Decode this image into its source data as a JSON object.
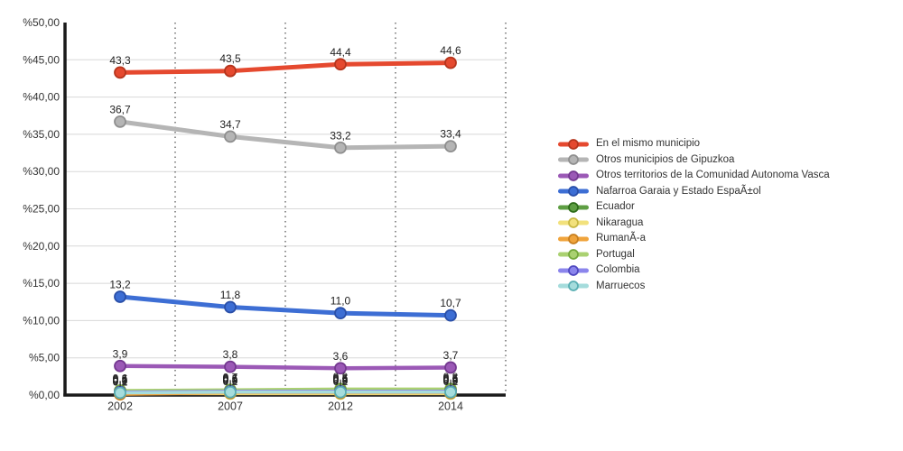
{
  "chart_data": {
    "type": "line",
    "title": "",
    "xlabel": "",
    "ylabel": "",
    "categories": [
      "2002",
      "2007",
      "2012",
      "2014"
    ],
    "y_ticklabels": [
      "%0,00",
      "%5,00",
      "%10,00",
      "%15,00",
      "%20,00",
      "%25,00",
      "%30,00",
      "%35,00",
      "%40,00",
      "%45,00",
      "%50,00"
    ],
    "ylim": [
      0,
      50
    ],
    "y_step": 5,
    "grid_horizontal": true,
    "grid_vertical_dotted": true,
    "legend_position": "right",
    "decimal_separator": ",",
    "series": [
      {
        "name": "En el mismo municipio",
        "color": "#e5492f",
        "marker_stroke": "#b5351d",
        "line_width": 5,
        "values": [
          43.3,
          43.5,
          44.4,
          44.6
        ],
        "show_labels": true
      },
      {
        "name": "Otros municipios de Gipuzkoa",
        "color": "#b5b5b5",
        "marker_stroke": "#8f8f8f",
        "line_width": 5,
        "values": [
          36.7,
          34.7,
          33.2,
          33.4
        ],
        "show_labels": true
      },
      {
        "name": "Otros territorios de la Comunidad Autonoma Vasca",
        "color": "#9b59b6",
        "marker_stroke": "#743990",
        "line_width": 4.5,
        "values": [
          3.9,
          3.8,
          3.6,
          3.7
        ],
        "show_labels": true
      },
      {
        "name": "Nafarroa Garaia y Estado EspaÃ±ol",
        "color": "#3d6ed4",
        "marker_stroke": "#2a4fa8",
        "line_width": 5,
        "values": [
          13.2,
          11.8,
          11.0,
          10.7
        ],
        "show_labels": true
      },
      {
        "name": "Ecuador",
        "color": "#5e9e43",
        "marker_stroke": "#2f6c1a",
        "line_width": 3.5,
        "values": [
          0.5,
          0.6,
          0.6,
          0.6
        ],
        "show_labels": true
      },
      {
        "name": "Nikaragua",
        "color": "#f2e17c",
        "marker_stroke": "#c9b944",
        "line_width": 3.5,
        "values": [
          0.2,
          0.2,
          0.2,
          0.2
        ],
        "show_labels": true
      },
      {
        "name": "RumanÃ-a",
        "color": "#f0a43c",
        "marker_stroke": "#c77f1f",
        "line_width": 3.5,
        "values": [
          0.1,
          0.3,
          0.3,
          0.3
        ],
        "show_labels": true
      },
      {
        "name": "Portugal",
        "color": "#aad171",
        "marker_stroke": "#74a83a",
        "line_width": 3.5,
        "values": [
          0.6,
          0.7,
          0.8,
          0.8
        ],
        "show_labels": true
      },
      {
        "name": "Colombia",
        "color": "#8b85ec",
        "marker_stroke": "#4f48c0",
        "line_width": 3.5,
        "values": [
          0.4,
          0.5,
          0.5,
          0.5
        ],
        "show_labels": true
      },
      {
        "name": "Marruecos",
        "color": "#a5dcdc",
        "marker_stroke": "#58aeb2",
        "line_width": 3.5,
        "values": [
          0.3,
          0.4,
          0.4,
          0.4
        ],
        "show_labels": true
      }
    ],
    "axis_color": "#1a1a1a",
    "gridline_color": "#d8d8d8",
    "dotted_line_color": "#4a4a4a",
    "tick_label_color": "#333333",
    "data_label_color": "#222222"
  }
}
